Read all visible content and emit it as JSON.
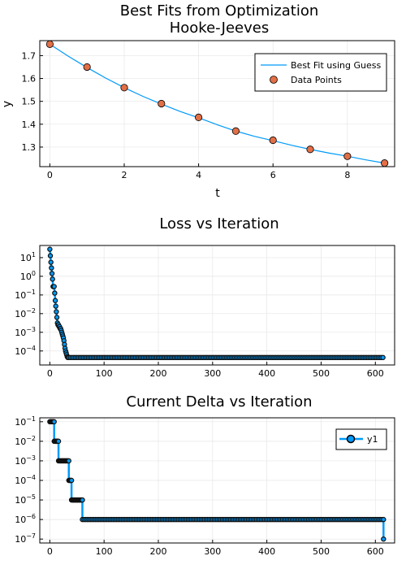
{
  "chart_data": [
    {
      "type": "scatter",
      "title": "Best Fits from Optimization",
      "subtitle": "Hooke-Jeeves",
      "xlabel": "t",
      "ylabel": "y",
      "xlim": [
        -0.27,
        9.27
      ],
      "ylim": [
        1.2145,
        1.7655
      ],
      "xticks": [
        0,
        2,
        4,
        6,
        8
      ],
      "xtick_labels": [
        "0",
        "2",
        "4",
        "6",
        "8"
      ],
      "yticks": [
        1.3,
        1.4,
        1.5,
        1.6,
        1.7
      ],
      "ytick_labels": [
        "1.3",
        "1.4",
        "1.5",
        "1.6",
        "1.7"
      ],
      "grid": true,
      "legend": "top-right",
      "colors": {
        "line": "#009af9",
        "points": "#e26f46"
      },
      "series": [
        {
          "name": "Best Fit using Guess",
          "kind": "line",
          "x": [
            0,
            0.5,
            1,
            1.5,
            2,
            2.5,
            3,
            3.5,
            4,
            4.5,
            5,
            5.5,
            6,
            6.5,
            7,
            7.5,
            8,
            8.5,
            9
          ],
          "y": [
            1.75,
            1.697,
            1.648,
            1.602,
            1.56,
            1.522,
            1.488,
            1.456,
            1.428,
            1.398,
            1.37,
            1.347,
            1.328,
            1.308,
            1.29,
            1.274,
            1.26,
            1.244,
            1.23
          ]
        },
        {
          "name": "Data Points",
          "kind": "scatter",
          "x": [
            0,
            1,
            2,
            3,
            4,
            5,
            6,
            7,
            8,
            9
          ],
          "y": [
            1.75,
            1.65,
            1.56,
            1.49,
            1.43,
            1.37,
            1.33,
            1.29,
            1.26,
            1.23
          ]
        }
      ]
    },
    {
      "type": "line",
      "title": "Loss vs Iteration",
      "xlabel": "",
      "ylabel": "",
      "scale_y": "log",
      "xlim": [
        -18.5,
        635.5
      ],
      "ylim_log10": [
        -4.75,
        1.65
      ],
      "xticks": [
        0,
        100,
        200,
        300,
        400,
        500,
        600
      ],
      "xtick_labels": [
        "0",
        "100",
        "200",
        "300",
        "400",
        "500",
        "600"
      ],
      "yticks_log10": [
        -4,
        -3,
        -2,
        -1,
        0,
        1
      ],
      "ytick_labels": [
        "10^-4",
        "10^-3",
        "10^-2",
        "10^-1",
        "10^0",
        "10^1"
      ],
      "grid": true,
      "colors": {
        "line": "#009af9",
        "marker": "#111111"
      },
      "series": [
        {
          "x": [
            0,
            1,
            2,
            3,
            4,
            5,
            6,
            7,
            8,
            9,
            10,
            11,
            12,
            13,
            14,
            15,
            16,
            17,
            18,
            19,
            20,
            21,
            22,
            23,
            24,
            25,
            26,
            27,
            28,
            29,
            30,
            31,
            32,
            33,
            35,
            615
          ],
          "y_log10": [
            1.45,
            1.1,
            0.75,
            0.45,
            0.15,
            -0.15,
            -0.55,
            -0.55,
            -0.55,
            -0.9,
            -1.3,
            -1.6,
            -1.9,
            -2.2,
            -2.5,
            -2.6,
            -2.6,
            -2.7,
            -2.7,
            -2.8,
            -2.8,
            -2.9,
            -3.0,
            -3.1,
            -3.2,
            -3.3,
            -3.45,
            -3.65,
            -3.85,
            -4.0,
            -4.1,
            -4.2,
            -4.3,
            -4.35,
            -4.35,
            -4.35
          ],
          "plateau_from": 35,
          "plateau_to": 615,
          "plateau_log10": -4.35
        }
      ]
    },
    {
      "type": "line",
      "title": "Current Delta vs Iteration",
      "xlabel": "",
      "ylabel": "",
      "scale_y": "log",
      "xlim": [
        -18.5,
        635.5
      ],
      "ylim_log10": [
        -7.2,
        -0.8
      ],
      "xticks": [
        0,
        100,
        200,
        300,
        400,
        500,
        600
      ],
      "xtick_labels": [
        "0",
        "100",
        "200",
        "300",
        "400",
        "500",
        "600"
      ],
      "yticks_log10": [
        -7,
        -6,
        -5,
        -4,
        -3,
        -2,
        -1
      ],
      "ytick_labels": [
        "10^-7",
        "10^-6",
        "10^-5",
        "10^-4",
        "10^-3",
        "10^-2",
        "10^-1"
      ],
      "grid": true,
      "legend": "top-right",
      "colors": {
        "line": "#009af9",
        "marker": "#111111"
      },
      "series": [
        {
          "name": "y1",
          "steps": [
            {
              "x0": 0,
              "x1": 8,
              "y_log10": -1
            },
            {
              "x0": 8,
              "x1": 16,
              "y_log10": -2
            },
            {
              "x0": 16,
              "x1": 35,
              "y_log10": -3
            },
            {
              "x0": 35,
              "x1": 40,
              "y_log10": -4
            },
            {
              "x0": 40,
              "x1": 60,
              "y_log10": -5
            },
            {
              "x0": 60,
              "x1": 615,
              "y_log10": -6
            },
            {
              "x0": 615,
              "x1": 615,
              "y_log10": -7
            }
          ]
        }
      ]
    }
  ]
}
